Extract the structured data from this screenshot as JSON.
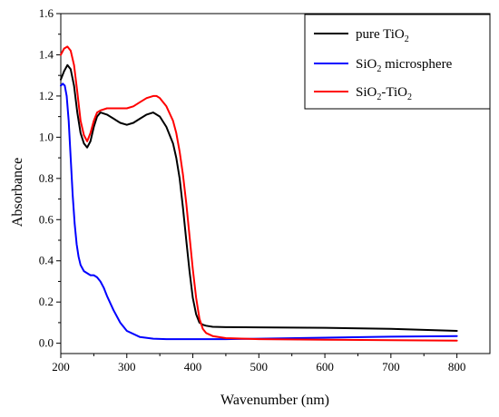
{
  "chart_data": {
    "type": "line",
    "title": "",
    "xlabel": "Wavenumber (nm)",
    "ylabel": "Absorbance",
    "xlim": [
      200,
      850
    ],
    "ylim": [
      -0.05,
      1.6
    ],
    "xticks": [
      200,
      300,
      400,
      500,
      600,
      700,
      800
    ],
    "yticks": [
      0.0,
      0.2,
      0.4,
      0.6,
      0.8,
      1.0,
      1.2,
      1.4,
      1.6
    ],
    "ytick_labels": [
      "0.0",
      "0.2",
      "0.4",
      "0.6",
      "0.8",
      "1.0",
      "1.2",
      "1.4",
      "1.6"
    ],
    "grid": false,
    "legend_position": "top-right",
    "series": [
      {
        "name": "pure TiO2",
        "legend_main": "pure TiO",
        "legend_sub": "2",
        "legend_tail": "",
        "color": "#000000",
        "x": [
          200,
          205,
          210,
          215,
          220,
          225,
          230,
          235,
          240,
          245,
          250,
          255,
          260,
          270,
          280,
          290,
          300,
          310,
          320,
          330,
          340,
          350,
          360,
          370,
          375,
          380,
          385,
          390,
          395,
          400,
          405,
          410,
          415,
          420,
          430,
          450,
          500,
          600,
          700,
          800
        ],
        "y": [
          1.28,
          1.32,
          1.35,
          1.33,
          1.25,
          1.12,
          1.02,
          0.97,
          0.95,
          0.98,
          1.05,
          1.1,
          1.12,
          1.11,
          1.09,
          1.07,
          1.06,
          1.07,
          1.09,
          1.11,
          1.12,
          1.1,
          1.05,
          0.97,
          0.9,
          0.8,
          0.66,
          0.5,
          0.35,
          0.22,
          0.14,
          0.1,
          0.09,
          0.085,
          0.08,
          0.078,
          0.077,
          0.075,
          0.07,
          0.06
        ]
      },
      {
        "name": "SiO2 microsphere",
        "legend_main": "SiO",
        "legend_sub": "2",
        "legend_tail": " microsphere",
        "color": "#0000ff",
        "x": [
          200,
          203,
          206,
          209,
          212,
          215,
          218,
          221,
          224,
          227,
          230,
          235,
          240,
          245,
          250,
          255,
          260,
          265,
          270,
          280,
          290,
          300,
          320,
          340,
          360,
          400,
          450,
          500,
          600,
          700,
          800
        ],
        "y": [
          1.25,
          1.26,
          1.25,
          1.2,
          1.08,
          0.9,
          0.72,
          0.58,
          0.48,
          0.42,
          0.38,
          0.35,
          0.34,
          0.33,
          0.33,
          0.32,
          0.3,
          0.27,
          0.23,
          0.16,
          0.1,
          0.06,
          0.03,
          0.022,
          0.02,
          0.02,
          0.02,
          0.022,
          0.027,
          0.032,
          0.035
        ]
      },
      {
        "name": "SiO2-TiO2",
        "legend_main": "SiO",
        "legend_sub": "2",
        "legend_tail": "-TiO",
        "legend_sub2": "2",
        "color": "#ff0000",
        "x": [
          200,
          205,
          210,
          215,
          220,
          225,
          230,
          235,
          240,
          245,
          250,
          255,
          260,
          270,
          280,
          290,
          300,
          310,
          320,
          330,
          340,
          345,
          350,
          360,
          370,
          375,
          380,
          385,
          390,
          395,
          400,
          405,
          410,
          415,
          420,
          430,
          450,
          500,
          600,
          700,
          800
        ],
        "y": [
          1.4,
          1.43,
          1.44,
          1.42,
          1.35,
          1.22,
          1.08,
          1.01,
          0.98,
          1.02,
          1.08,
          1.12,
          1.13,
          1.14,
          1.14,
          1.14,
          1.14,
          1.15,
          1.17,
          1.19,
          1.2,
          1.2,
          1.19,
          1.15,
          1.08,
          1.02,
          0.93,
          0.82,
          0.68,
          0.52,
          0.36,
          0.22,
          0.12,
          0.07,
          0.05,
          0.035,
          0.025,
          0.02,
          0.017,
          0.015,
          0.013
        ]
      }
    ]
  }
}
